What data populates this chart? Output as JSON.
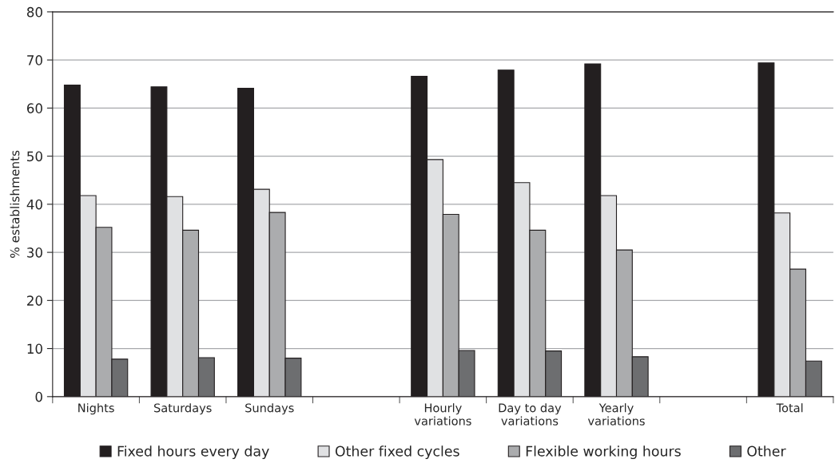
{
  "chart_data": {
    "type": "bar",
    "ylabel": "% establishments",
    "categories": [
      "Nights",
      "Saturdays",
      "Sundays",
      null,
      "Hourly\nvariations",
      "Day to day\nvariations",
      "Yearly\nvariations",
      null,
      "Total"
    ],
    "series": [
      {
        "name": "Fixed hours every day",
        "color": "#231f20",
        "values": [
          64.8,
          64.4,
          64.1,
          null,
          66.6,
          67.9,
          69.2,
          null,
          69.4
        ]
      },
      {
        "name": "Other fixed cycles",
        "color": "#e0e1e3",
        "values": [
          41.8,
          41.6,
          43.1,
          null,
          49.3,
          44.5,
          41.8,
          null,
          38.2
        ]
      },
      {
        "name": "Flexible working hours",
        "color": "#abacae",
        "values": [
          35.2,
          34.6,
          38.3,
          null,
          37.9,
          34.6,
          30.5,
          null,
          26.5
        ]
      },
      {
        "name": "Other",
        "color": "#6d6e70",
        "values": [
          7.8,
          8.1,
          8.0,
          null,
          9.6,
          9.5,
          8.3,
          null,
          7.4
        ]
      }
    ],
    "ylim": [
      0,
      80
    ],
    "yticks": [
      0,
      10,
      20,
      30,
      40,
      50,
      60,
      70,
      80
    ],
    "grid": "y",
    "legend": "bottom"
  }
}
